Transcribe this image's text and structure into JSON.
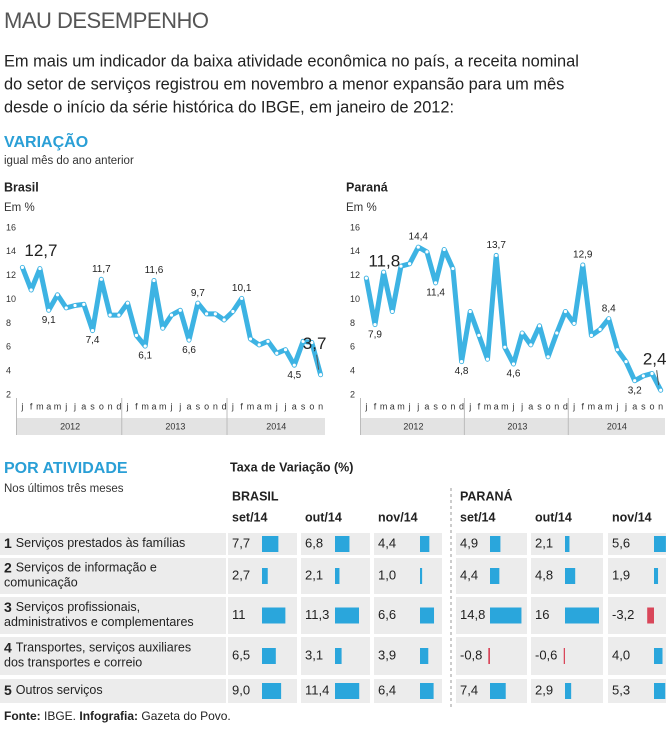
{
  "header": {
    "title": "MAU DESEMPENHO",
    "intro": [
      "Em mais um indicador da baixa atividade econômica no país, a receita nominal",
      "do setor de serviços registrou em novembro a menor expansão para um mês",
      "desde o início da série histórica do IBGE, em janeiro de 2012:"
    ]
  },
  "section1": {
    "title": "VARIAÇÃO",
    "subtitle": "igual mês do ano anterior"
  },
  "chart_data": [
    {
      "type": "line",
      "title": "Brasil",
      "ylabel": "Em %",
      "categories": [
        "j",
        "f",
        "m",
        "a",
        "m",
        "j",
        "j",
        "a",
        "s",
        "o",
        "n",
        "d",
        "j",
        "f",
        "m",
        "a",
        "m",
        "j",
        "j",
        "a",
        "s",
        "o",
        "n",
        "d",
        "j",
        "f",
        "m",
        "a",
        "m",
        "j",
        "j",
        "a",
        "s",
        "o",
        "n"
      ],
      "years": [
        "2012",
        "2013",
        "2014"
      ],
      "values": [
        12.7,
        10.8,
        12.6,
        9.1,
        10.4,
        9.3,
        9.5,
        9.6,
        7.4,
        11.7,
        8.7,
        8.7,
        9.7,
        7.0,
        6.1,
        11.6,
        7.6,
        8.7,
        9.1,
        6.6,
        9.7,
        8.8,
        8.8,
        8.3,
        9.0,
        10.1,
        6.7,
        6.2,
        6.5,
        5.5,
        5.8,
        4.5,
        6.5,
        6.4,
        3.7
      ],
      "value_labels": [
        "12,7",
        null,
        null,
        "9,1",
        null,
        null,
        null,
        null,
        "7,4",
        "11,7",
        null,
        null,
        null,
        null,
        "6,1",
        "11,6",
        null,
        null,
        null,
        "6,6",
        "9,7",
        null,
        null,
        null,
        null,
        "10,1",
        null,
        null,
        null,
        null,
        null,
        "4,5",
        null,
        null,
        "3,7"
      ],
      "color": "#3db3e3",
      "ylim": [
        2,
        16
      ],
      "yticks": [
        2,
        4,
        6,
        8,
        10,
        12,
        14,
        16
      ],
      "grid": false
    },
    {
      "type": "line",
      "title": "Paraná",
      "ylabel": "Em %",
      "categories": [
        "j",
        "f",
        "m",
        "a",
        "m",
        "j",
        "j",
        "a",
        "s",
        "o",
        "n",
        "d",
        "j",
        "f",
        "m",
        "a",
        "m",
        "j",
        "j",
        "a",
        "s",
        "o",
        "n",
        "d",
        "j",
        "f",
        "m",
        "a",
        "m",
        "j",
        "j",
        "a",
        "s",
        "o",
        "n"
      ],
      "years": [
        "2012",
        "2013",
        "2014"
      ],
      "values": [
        11.8,
        7.9,
        12.3,
        9.0,
        12.8,
        13.0,
        14.4,
        14.0,
        11.4,
        14.2,
        12.6,
        4.8,
        9.0,
        7.0,
        5.0,
        13.7,
        6.0,
        4.6,
        7.2,
        6.2,
        7.8,
        5.2,
        7.2,
        9.0,
        8.0,
        12.9,
        7.0,
        7.5,
        8.4,
        5.8,
        4.8,
        3.2,
        3.6,
        3.8,
        2.4
      ],
      "value_labels": [
        "11,8",
        "7,9",
        null,
        null,
        null,
        null,
        "14,4",
        null,
        "11,4",
        null,
        null,
        "4,8",
        null,
        null,
        null,
        "13,7",
        null,
        "4,6",
        null,
        null,
        null,
        null,
        null,
        null,
        null,
        "12,9",
        null,
        null,
        "8,4",
        null,
        null,
        "3,2",
        null,
        null,
        "2,4"
      ],
      "color": "#3db3e3",
      "ylim": [
        2,
        16
      ],
      "yticks": [
        2,
        4,
        6,
        8,
        10,
        12,
        14,
        16
      ],
      "grid": false
    }
  ],
  "section2": {
    "title": "POR ATIVIDADE",
    "subtitle": "Nos últimos três meses",
    "table_title": "Taxa de Variação (%)"
  },
  "table": {
    "groups": [
      "BRASIL",
      "PARANÁ"
    ],
    "columns": [
      "set/14",
      "out/14",
      "nov/14",
      "set/14",
      "out/14",
      "nov/14"
    ],
    "bar_color": "#2aa6dc",
    "negative_color": "#d9475a",
    "rows": [
      {
        "number": "1",
        "name": [
          "Serviços prestados às famílias"
        ],
        "values": [
          7.7,
          6.8,
          4.4,
          4.9,
          2.1,
          5.6
        ],
        "value_labels": [
          "7,7",
          "6,8",
          "4,4",
          "4,9",
          "2,1",
          "5,6"
        ]
      },
      {
        "number": "2",
        "name": [
          "Serviços de informação e",
          "comunicação"
        ],
        "values": [
          2.7,
          2.1,
          1.0,
          4.4,
          4.8,
          1.9
        ],
        "value_labels": [
          "2,7",
          "2,1",
          "1,0",
          "4,4",
          "4,8",
          "1,9"
        ]
      },
      {
        "number": "3",
        "name": [
          "Serviços profissionais,",
          "administrativos e complementares"
        ],
        "values": [
          11,
          11.3,
          6.6,
          14.8,
          16,
          -3.2
        ],
        "value_labels": [
          "11",
          "11,3",
          "6,6",
          "14,8",
          "16",
          "-3,2"
        ]
      },
      {
        "number": "4",
        "name": [
          "Transportes, serviços auxiliares",
          "dos transportes e correio"
        ],
        "values": [
          6.5,
          3.1,
          3.9,
          -0.8,
          -0.6,
          4.0
        ],
        "value_labels": [
          "6,5",
          "3,1",
          "3,9",
          "-0,8",
          "-0,6",
          "4,0"
        ]
      },
      {
        "number": "5",
        "name": [
          "Outros serviços"
        ],
        "values": [
          9.0,
          11.4,
          6.4,
          7.4,
          2.9,
          5.3
        ],
        "value_labels": [
          "9,0",
          "11,4",
          "6,4",
          "7,4",
          "2,9",
          "5,3"
        ]
      }
    ]
  },
  "footer": {
    "source_label": "Fonte:",
    "source": "IBGE.",
    "credit_label": "Infografia:",
    "credit": "Gazeta do Povo."
  }
}
